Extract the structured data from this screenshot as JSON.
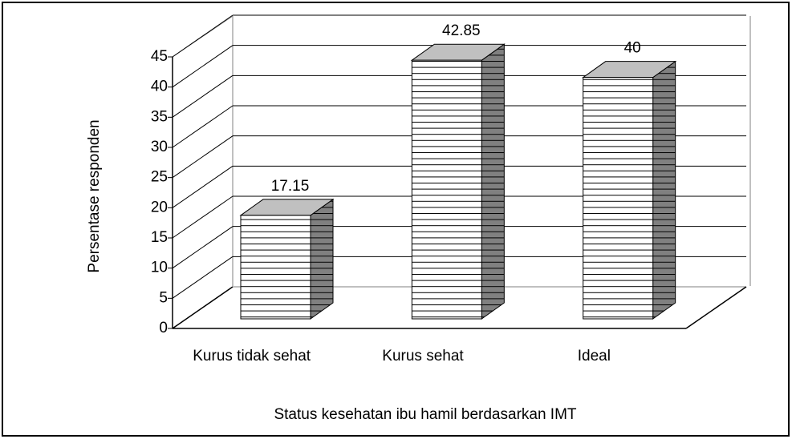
{
  "chart_data": {
    "type": "bar",
    "xlabel": "Status kesehatan ibu hamil berdasarkan IMT",
    "ylabel": "Persentase responden",
    "categories": [
      "Kurus tidak sehat",
      "Kurus sehat",
      "Ideal"
    ],
    "values": [
      17.15,
      42.85,
      40
    ],
    "color": "#ffffff",
    "ylim": [
      0,
      45
    ],
    "yticks": [
      0,
      5,
      10,
      15,
      20,
      25,
      30,
      35,
      40,
      45
    ],
    "grid": true
  }
}
